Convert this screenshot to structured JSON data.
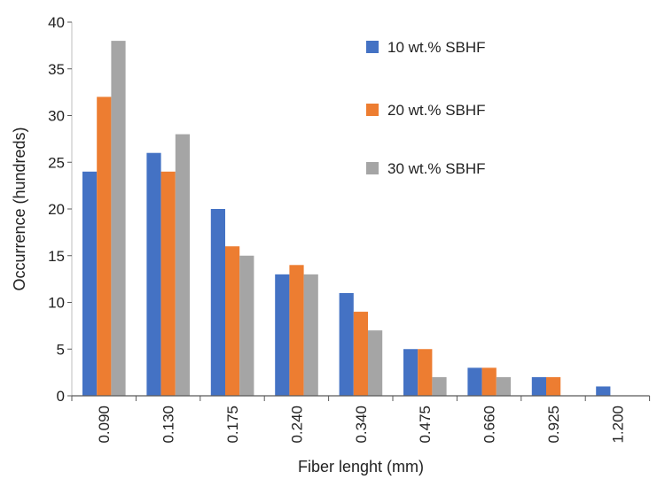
{
  "chart_data": {
    "type": "bar",
    "title": "",
    "xlabel": "Fiber lenght (mm)",
    "ylabel": "Occurrence (hundreds)",
    "ylim": [
      0,
      40
    ],
    "yticks": [
      0,
      5,
      10,
      15,
      20,
      25,
      30,
      35,
      40
    ],
    "grid": false,
    "legend_position": "top-right",
    "categories": [
      "0.090",
      "0.130",
      "0.175",
      "0.240",
      "0.340",
      "0.475",
      "0.660",
      "0.925",
      "1.200"
    ],
    "series": [
      {
        "name": "10 wt.% SBHF",
        "color": "#4472C4",
        "values": [
          24,
          26,
          20,
          13,
          11,
          5,
          3,
          2,
          1
        ]
      },
      {
        "name": "20 wt.% SBHF",
        "color": "#ED7D31",
        "values": [
          32,
          24,
          16,
          14,
          9,
          5,
          3,
          2,
          0
        ]
      },
      {
        "name": "30 wt.% SBHF",
        "color": "#A5A5A5",
        "values": [
          38,
          28,
          15,
          13,
          7,
          2,
          2,
          0,
          0
        ]
      }
    ]
  }
}
